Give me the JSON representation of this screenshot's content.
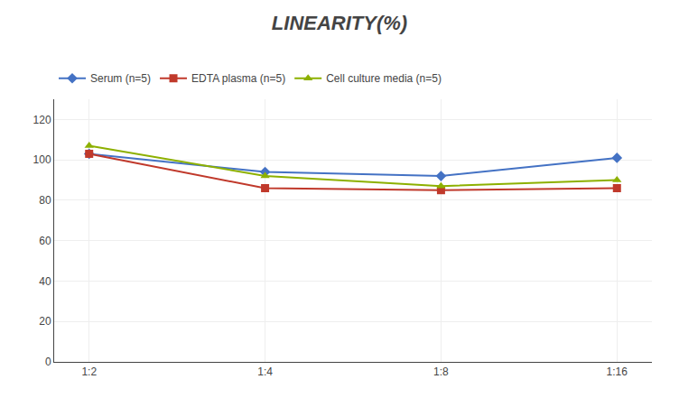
{
  "chart_data": {
    "type": "line",
    "title": "LINEARITY(%)",
    "categories": [
      "1:2",
      "1:4",
      "1:8",
      "1:16"
    ],
    "series": [
      {
        "name": "Serum (n=5)",
        "color": "#4472C4",
        "marker": "diamond",
        "values": [
          103,
          94,
          92,
          101
        ]
      },
      {
        "name": "EDTA plasma (n=5)",
        "color": "#C0392B",
        "marker": "square",
        "values": [
          103,
          86,
          85,
          86
        ]
      },
      {
        "name": "Cell culture media (n=5)",
        "color": "#8DB000",
        "marker": "triangle-up",
        "values": [
          107,
          92,
          87,
          90
        ]
      }
    ],
    "ylim": [
      0,
      130
    ],
    "yticks": [
      0,
      20,
      40,
      60,
      80,
      100,
      120
    ],
    "grid": true,
    "legend": "top"
  }
}
